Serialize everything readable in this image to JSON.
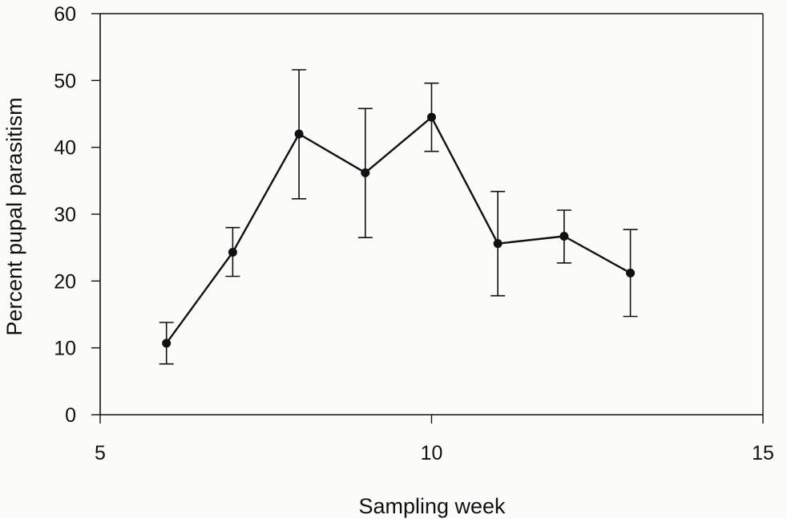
{
  "chart_data": {
    "type": "line",
    "title": "",
    "xlabel": "Sampling week",
    "ylabel": "Percent pupal parasitism",
    "xlim": [
      5,
      15
    ],
    "ylim": [
      0,
      60
    ],
    "x_ticks": [
      5,
      10,
      15
    ],
    "y_ticks": [
      0,
      10,
      20,
      30,
      40,
      50,
      60
    ],
    "grid": false,
    "legend": "none",
    "colors": {
      "line": "#111111",
      "marker": "#111111",
      "axis": "#111111",
      "background": "#fbfbf9"
    },
    "series": [
      {
        "x": [
          6,
          7,
          8,
          9,
          10,
          11,
          12,
          13
        ],
        "y": [
          10.7,
          24.3,
          42.0,
          36.2,
          44.5,
          25.6,
          26.7,
          21.2
        ],
        "error_upper": [
          13.8,
          28.0,
          51.6,
          45.8,
          49.6,
          33.4,
          30.6,
          27.7
        ],
        "error_lower": [
          7.6,
          20.7,
          32.3,
          26.5,
          39.4,
          17.8,
          22.7,
          14.7
        ]
      }
    ]
  }
}
